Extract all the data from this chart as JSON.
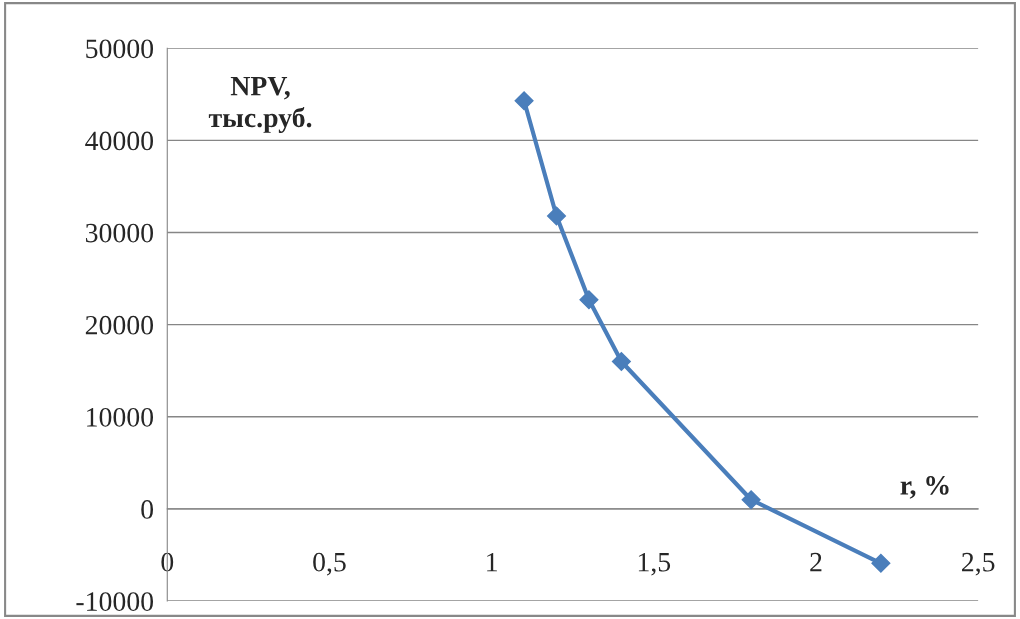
{
  "chart_data": {
    "type": "line",
    "xlabel": "r, %",
    "ylabel": "NPV,\nтыс.руб.",
    "x": [
      1.1,
      1.2,
      1.3,
      1.4,
      1.8,
      2.2
    ],
    "series": [
      {
        "color": "#4a7ebb",
        "values": [
          44300,
          31800,
          22700,
          16000,
          1000,
          -5900
        ]
      }
    ],
    "xlim": [
      0,
      2.5
    ],
    "xticks": [
      0,
      {
        "value": 0.5,
        "label": "0,5"
      },
      1,
      {
        "value": 1.5,
        "label": "1,5"
      },
      2,
      {
        "value": 2.5,
        "label": "2,5"
      }
    ],
    "ylim": [
      -10000,
      50000
    ],
    "yticks": [
      -10000,
      0,
      10000,
      20000,
      30000,
      40000,
      50000
    ],
    "grid": "y",
    "marker": "diamond",
    "line_style": "solid",
    "legend": false
  }
}
